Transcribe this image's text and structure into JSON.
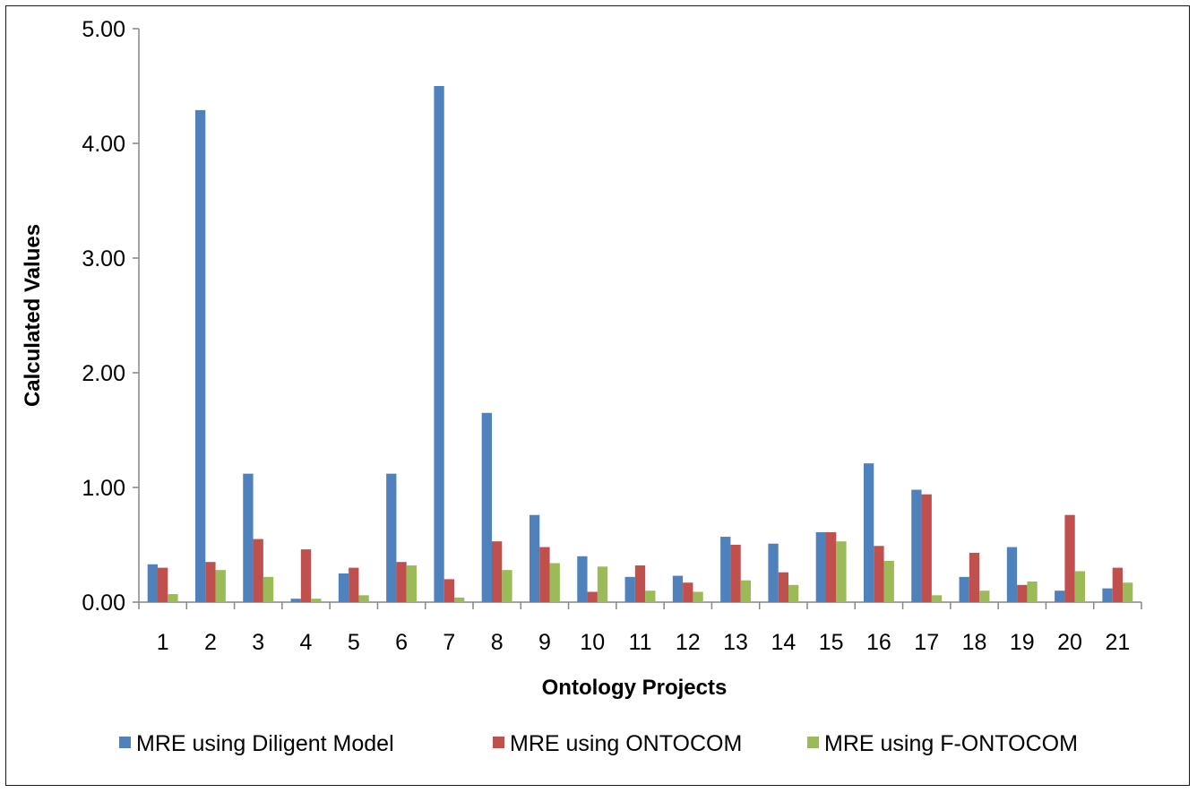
{
  "chart_data": {
    "type": "bar",
    "title": "",
    "xlabel": "Ontology Projects",
    "ylabel": "Calculated Values",
    "ylim": [
      0,
      5
    ],
    "yticks": [
      "0.00",
      "1.00",
      "2.00",
      "3.00",
      "4.00",
      "5.00"
    ],
    "grid": false,
    "legend_position": "bottom",
    "categories": [
      "1",
      "2",
      "3",
      "4",
      "5",
      "6",
      "7",
      "8",
      "9",
      "10",
      "11",
      "12",
      "13",
      "14",
      "15",
      "16",
      "17",
      "18",
      "19",
      "20",
      "21"
    ],
    "series": [
      {
        "name": "MRE using Diligent Model",
        "color": "#4F81BD",
        "values": [
          0.33,
          4.29,
          1.12,
          0.03,
          0.25,
          1.12,
          4.5,
          1.65,
          0.76,
          0.4,
          0.22,
          0.23,
          0.57,
          0.51,
          0.61,
          1.21,
          0.98,
          0.22,
          0.48,
          0.1,
          0.12
        ]
      },
      {
        "name": "MRE using ONTOCOM",
        "color": "#C0504D",
        "values": [
          0.3,
          0.35,
          0.55,
          0.46,
          0.3,
          0.35,
          0.2,
          0.53,
          0.48,
          0.09,
          0.32,
          0.17,
          0.5,
          0.26,
          0.61,
          0.49,
          0.94,
          0.43,
          0.15,
          0.76,
          0.3
        ]
      },
      {
        "name": "MRE using F-ONTOCOM",
        "color": "#9BBB59",
        "values": [
          0.07,
          0.28,
          0.22,
          0.03,
          0.06,
          0.32,
          0.04,
          0.28,
          0.34,
          0.31,
          0.1,
          0.09,
          0.19,
          0.15,
          0.53,
          0.36,
          0.06,
          0.1,
          0.18,
          0.27,
          0.17
        ]
      }
    ]
  }
}
